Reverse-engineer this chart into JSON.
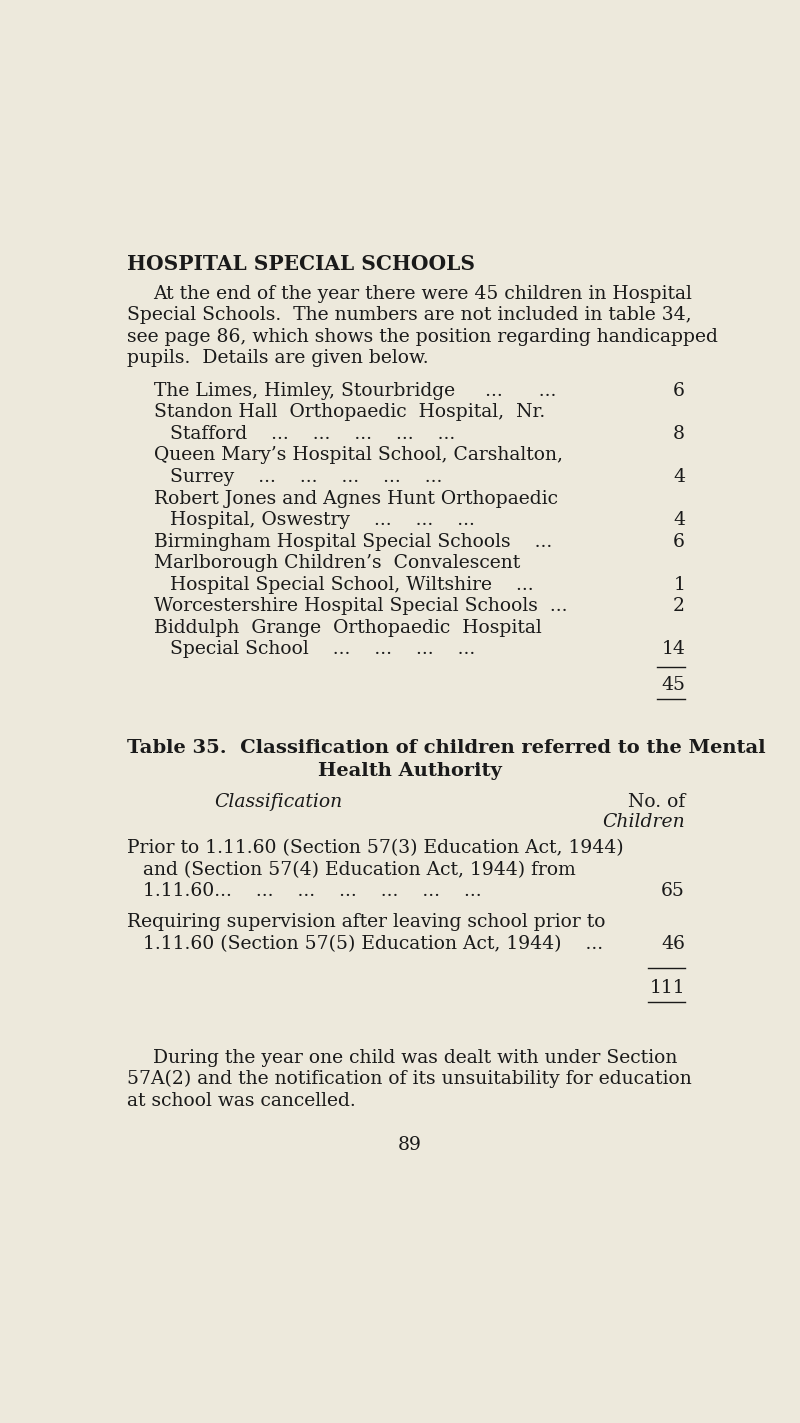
{
  "bg_color": "#ede9dc",
  "text_color": "#1a1a1a",
  "page_number": "89",
  "heading": "HOSPITAL SPECIAL SCHOOLS",
  "intro_lines": [
    "At the end of the year there were 45 children in Hospital",
    "Special Schools.  The numbers are not included in table 34,",
    "see page 86, which shows the position regarding handicapped",
    "pupils.  Details are given below."
  ],
  "school_entries": [
    {
      "label": "The Limes, Himley, Stourbridge     ...      ...",
      "value": "6"
    },
    {
      "label": "Standon Hall  Orthopaedic  Hospital,  Nr.",
      "value": ""
    },
    {
      "label": "    Stafford    ...    ...    ...    ...    ...",
      "value": "8"
    },
    {
      "label": "Queen Mary’s Hospital School, Carshalton,",
      "value": ""
    },
    {
      "label": "    Surrey    ...    ...    ...    ...    ...",
      "value": "4"
    },
    {
      "label": "Robert Jones and Agnes Hunt Orthopaedic",
      "value": ""
    },
    {
      "label": "    Hospital, Oswestry    ...    ...    ...",
      "value": "4"
    },
    {
      "label": "Birmingham Hospital Special Schools    ...",
      "value": "6"
    },
    {
      "label": "Marlborough Children’s  Convalescent",
      "value": ""
    },
    {
      "label": "    Hospital Special School, Wiltshire    ...",
      "value": "1"
    },
    {
      "label": "Worcestershire Hospital Special Schools  ...",
      "value": "2"
    },
    {
      "label": "Biddulph  Grange  Orthopaedic  Hospital",
      "value": ""
    },
    {
      "label": "    Special School    ...    ...    ...    ...",
      "value": "14"
    }
  ],
  "total_label": "45",
  "table35_heading_line1": "Table 35.  Classification of children referred to the Mental",
  "table35_heading_line2": "Health Authority",
  "col_header_left": "Classification",
  "col_header_right_line1": "No. of",
  "col_header_right_line2": "Children",
  "table35_rows": [
    {
      "text_lines": [
        "Prior to 1.11.60 (Section 57(3) Education Act, 1944)",
        "  and (Section 57(4) Education Act, 1944) from",
        "  1.11.60...    ...    ...    ...    ...    ...    ..."
      ],
      "value": "65"
    },
    {
      "text_lines": [
        "Requiring supervision after leaving school prior to",
        "  1.11.60 (Section 57(5) Education Act, 1944)    ..."
      ],
      "value": "46"
    }
  ],
  "table35_total": "111",
  "closing_lines": [
    "During the year one child was dealt with under Section",
    "57A(2) and the notification of its unsuitability for education",
    "at school was cancelled."
  ]
}
